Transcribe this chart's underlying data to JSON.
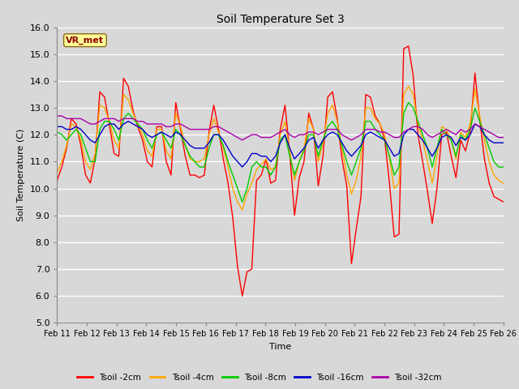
{
  "title": "Soil Temperature Set 3",
  "xlabel": "Time",
  "ylabel": "Soil Temperature (C)",
  "ylim": [
    5.0,
    16.0
  ],
  "yticks": [
    5.0,
    6.0,
    7.0,
    8.0,
    9.0,
    10.0,
    11.0,
    12.0,
    13.0,
    14.0,
    15.0,
    16.0
  ],
  "xtick_labels": [
    "Feb 11",
    "Feb 12",
    "Feb 13",
    "Feb 14",
    "Feb 15",
    "Feb 16",
    "Feb 17",
    "Feb 18",
    "Feb 19",
    "Feb 20",
    "Feb 21",
    "Feb 22",
    "Feb 23",
    "Feb 24",
    "Feb 25",
    "Feb 26"
  ],
  "colors": {
    "Tsoil -2cm": "#ff0000",
    "Tsoil -4cm": "#ffa500",
    "Tsoil -8cm": "#00cc00",
    "Tsoil -16cm": "#0000cc",
    "Tsoil -32cm": "#aa00aa"
  },
  "legend_label": "VR_met",
  "background_color": "#d8d8d8",
  "fig_background": "#d8d8d8",
  "grid_color": "#ffffff",
  "series": {
    "Tsoil -2cm": [
      10.3,
      10.8,
      11.5,
      12.6,
      12.4,
      11.6,
      10.5,
      10.2,
      11.1,
      13.6,
      13.4,
      12.4,
      11.3,
      11.2,
      14.1,
      13.8,
      12.9,
      12.3,
      11.8,
      11.0,
      10.8,
      12.3,
      12.3,
      11.0,
      10.5,
      13.2,
      12.2,
      11.2,
      10.5,
      10.5,
      10.4,
      10.5,
      12.1,
      13.1,
      12.2,
      11.1,
      10.2,
      8.9,
      7.1,
      6.0,
      6.9,
      7.0,
      10.3,
      10.5,
      11.1,
      10.2,
      10.3,
      12.2,
      13.1,
      11.3,
      9.0,
      10.4,
      11.0,
      12.8,
      12.2,
      10.1,
      11.2,
      13.4,
      13.6,
      12.6,
      11.1,
      10.1,
      7.2,
      8.5,
      9.7,
      13.5,
      13.4,
      12.7,
      12.4,
      11.8,
      10.2,
      8.2,
      8.3,
      15.2,
      15.3,
      14.2,
      12.0,
      11.0,
      9.9,
      8.7,
      10.0,
      12.0,
      12.1,
      11.2,
      10.4,
      11.8,
      11.4,
      12.1,
      14.3,
      12.6,
      11.1,
      10.2,
      9.7,
      9.6,
      9.5
    ],
    "Tsoil -4cm": [
      10.6,
      11.0,
      11.6,
      12.4,
      12.3,
      11.8,
      11.0,
      10.7,
      11.3,
      13.1,
      13.0,
      12.5,
      11.8,
      11.5,
      13.5,
      13.3,
      12.8,
      12.4,
      12.0,
      11.4,
      11.2,
      12.2,
      12.2,
      11.4,
      11.1,
      12.8,
      12.3,
      11.6,
      11.1,
      11.0,
      11.0,
      11.1,
      12.0,
      12.6,
      12.1,
      11.5,
      10.8,
      10.0,
      9.5,
      9.2,
      9.8,
      10.2,
      10.7,
      10.9,
      11.1,
      10.7,
      10.8,
      12.0,
      12.5,
      11.4,
      10.3,
      11.0,
      11.5,
      12.6,
      12.2,
      11.0,
      11.7,
      12.8,
      13.1,
      12.5,
      11.5,
      10.5,
      9.8,
      10.3,
      11.2,
      13.0,
      13.0,
      12.6,
      12.4,
      12.0,
      11.1,
      10.0,
      10.2,
      13.5,
      13.8,
      13.5,
      12.4,
      11.8,
      11.0,
      10.2,
      11.2,
      12.3,
      12.2,
      11.8,
      11.1,
      12.1,
      11.9,
      12.4,
      13.7,
      12.7,
      11.8,
      11.0,
      10.5,
      10.3,
      10.2
    ],
    "Tsoil -8cm": [
      12.1,
      12.0,
      11.8,
      12.0,
      12.2,
      12.0,
      11.5,
      11.0,
      11.0,
      12.2,
      12.5,
      12.5,
      12.2,
      11.8,
      12.6,
      12.8,
      12.6,
      12.4,
      12.2,
      11.8,
      11.5,
      12.0,
      12.1,
      11.8,
      11.5,
      12.2,
      12.0,
      11.6,
      11.2,
      11.0,
      10.8,
      10.8,
      11.5,
      12.0,
      12.0,
      11.6,
      11.0,
      10.5,
      10.0,
      9.5,
      10.0,
      10.8,
      11.0,
      10.8,
      10.8,
      10.5,
      10.8,
      11.8,
      12.0,
      11.2,
      10.5,
      11.0,
      11.4,
      12.0,
      12.0,
      11.2,
      11.8,
      12.3,
      12.5,
      12.2,
      11.6,
      11.0,
      10.5,
      11.0,
      11.5,
      12.5,
      12.5,
      12.2,
      12.0,
      11.8,
      11.2,
      10.5,
      10.8,
      12.8,
      13.2,
      13.0,
      12.5,
      12.0,
      11.5,
      10.8,
      11.5,
      12.2,
      12.0,
      11.8,
      11.2,
      12.0,
      11.8,
      12.2,
      13.0,
      12.5,
      12.0,
      11.5,
      11.0,
      10.8,
      10.8
    ],
    "Tsoil -16cm": [
      12.3,
      12.3,
      12.2,
      12.2,
      12.3,
      12.2,
      12.0,
      11.8,
      11.7,
      12.0,
      12.3,
      12.4,
      12.4,
      12.2,
      12.4,
      12.5,
      12.4,
      12.3,
      12.2,
      12.0,
      11.9,
      12.0,
      12.1,
      12.0,
      11.9,
      12.1,
      12.0,
      11.8,
      11.6,
      11.5,
      11.5,
      11.5,
      11.7,
      12.0,
      12.0,
      11.8,
      11.5,
      11.2,
      11.0,
      10.8,
      11.0,
      11.3,
      11.3,
      11.2,
      11.2,
      11.0,
      11.2,
      11.7,
      12.0,
      11.5,
      11.1,
      11.3,
      11.5,
      11.8,
      11.9,
      11.5,
      11.8,
      12.0,
      12.1,
      12.0,
      11.7,
      11.4,
      11.2,
      11.4,
      11.6,
      12.0,
      12.1,
      12.0,
      11.9,
      11.8,
      11.5,
      11.2,
      11.3,
      12.0,
      12.2,
      12.2,
      12.0,
      11.8,
      11.5,
      11.2,
      11.5,
      11.9,
      12.0,
      11.9,
      11.6,
      11.9,
      11.8,
      12.0,
      12.4,
      12.3,
      12.0,
      11.8,
      11.7,
      11.7,
      11.7
    ],
    "Tsoil -32cm": [
      12.7,
      12.7,
      12.6,
      12.6,
      12.6,
      12.6,
      12.5,
      12.4,
      12.4,
      12.5,
      12.6,
      12.6,
      12.6,
      12.5,
      12.6,
      12.6,
      12.6,
      12.5,
      12.5,
      12.4,
      12.4,
      12.4,
      12.4,
      12.3,
      12.3,
      12.4,
      12.4,
      12.3,
      12.2,
      12.2,
      12.2,
      12.2,
      12.2,
      12.3,
      12.3,
      12.2,
      12.1,
      12.0,
      11.9,
      11.8,
      11.9,
      12.0,
      12.0,
      11.9,
      11.9,
      11.9,
      12.0,
      12.1,
      12.2,
      12.0,
      11.9,
      12.0,
      12.0,
      12.1,
      12.1,
      12.0,
      12.1,
      12.2,
      12.2,
      12.2,
      12.0,
      11.9,
      11.8,
      11.9,
      12.0,
      12.2,
      12.2,
      12.2,
      12.1,
      12.1,
      12.0,
      11.9,
      11.9,
      12.1,
      12.2,
      12.3,
      12.3,
      12.2,
      12.0,
      11.9,
      12.0,
      12.1,
      12.2,
      12.1,
      12.0,
      12.2,
      12.1,
      12.2,
      12.4,
      12.3,
      12.2,
      12.1,
      12.0,
      11.9,
      11.9
    ]
  }
}
